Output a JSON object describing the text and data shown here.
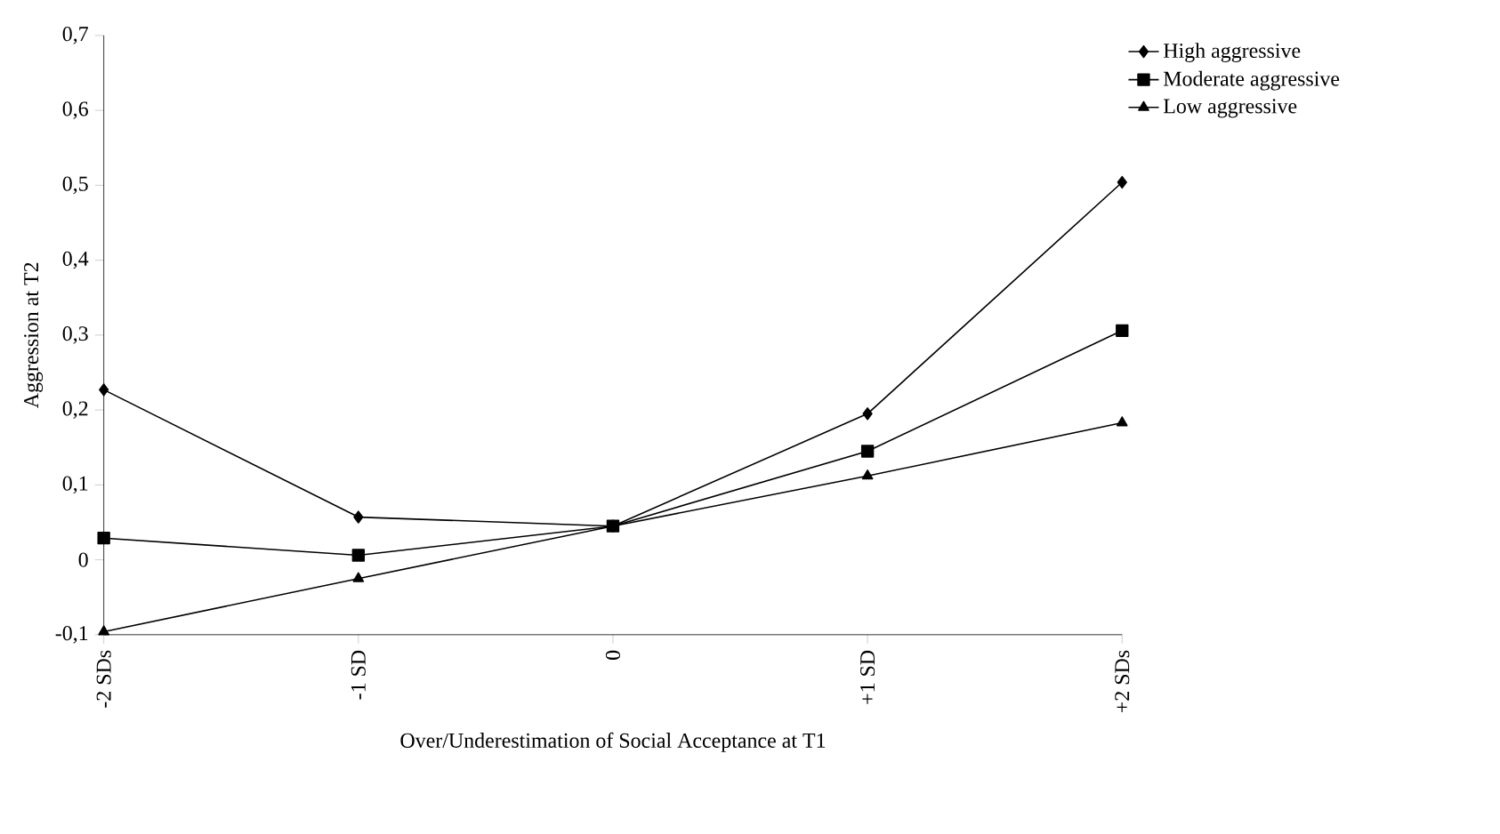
{
  "chart_data": {
    "type": "line",
    "xlabel": "Over/Underestimation of Social Acceptance at T1",
    "ylabel": "Aggression at T2",
    "categories": [
      "-2 SDs",
      "-1 SD",
      "0",
      "+1 SD",
      "+2 SDs"
    ],
    "series": [
      {
        "name": "High aggressive",
        "color": "#000000",
        "marker": "diamond",
        "values": [
          0.227,
          0.057,
          0.045,
          0.195,
          0.504
        ]
      },
      {
        "name": "Moderate aggressive",
        "color": "#000000",
        "marker": "square",
        "values": [
          0.029,
          0.006,
          0.045,
          0.145,
          0.306
        ]
      },
      {
        "name": "Low aggressive",
        "color": "#000000",
        "marker": "triangle",
        "values": [
          -0.096,
          -0.025,
          0.045,
          0.112,
          0.183
        ]
      }
    ],
    "ylim": [
      -0.1,
      0.7
    ],
    "yticks": [
      {
        "value": -0.1,
        "label": "-0,1"
      },
      {
        "value": 0,
        "label": "0"
      },
      {
        "value": 0.1,
        "label": "0,1"
      },
      {
        "value": 0.2,
        "label": "0,2"
      },
      {
        "value": 0.3,
        "label": "0,3"
      },
      {
        "value": 0.4,
        "label": "0,4"
      },
      {
        "value": 0.5,
        "label": "0,5"
      },
      {
        "value": 0.6,
        "label": "0,6"
      },
      {
        "value": 0.7,
        "label": "0,7"
      }
    ],
    "grid": false,
    "legend": "top right",
    "line_style": "solid"
  }
}
